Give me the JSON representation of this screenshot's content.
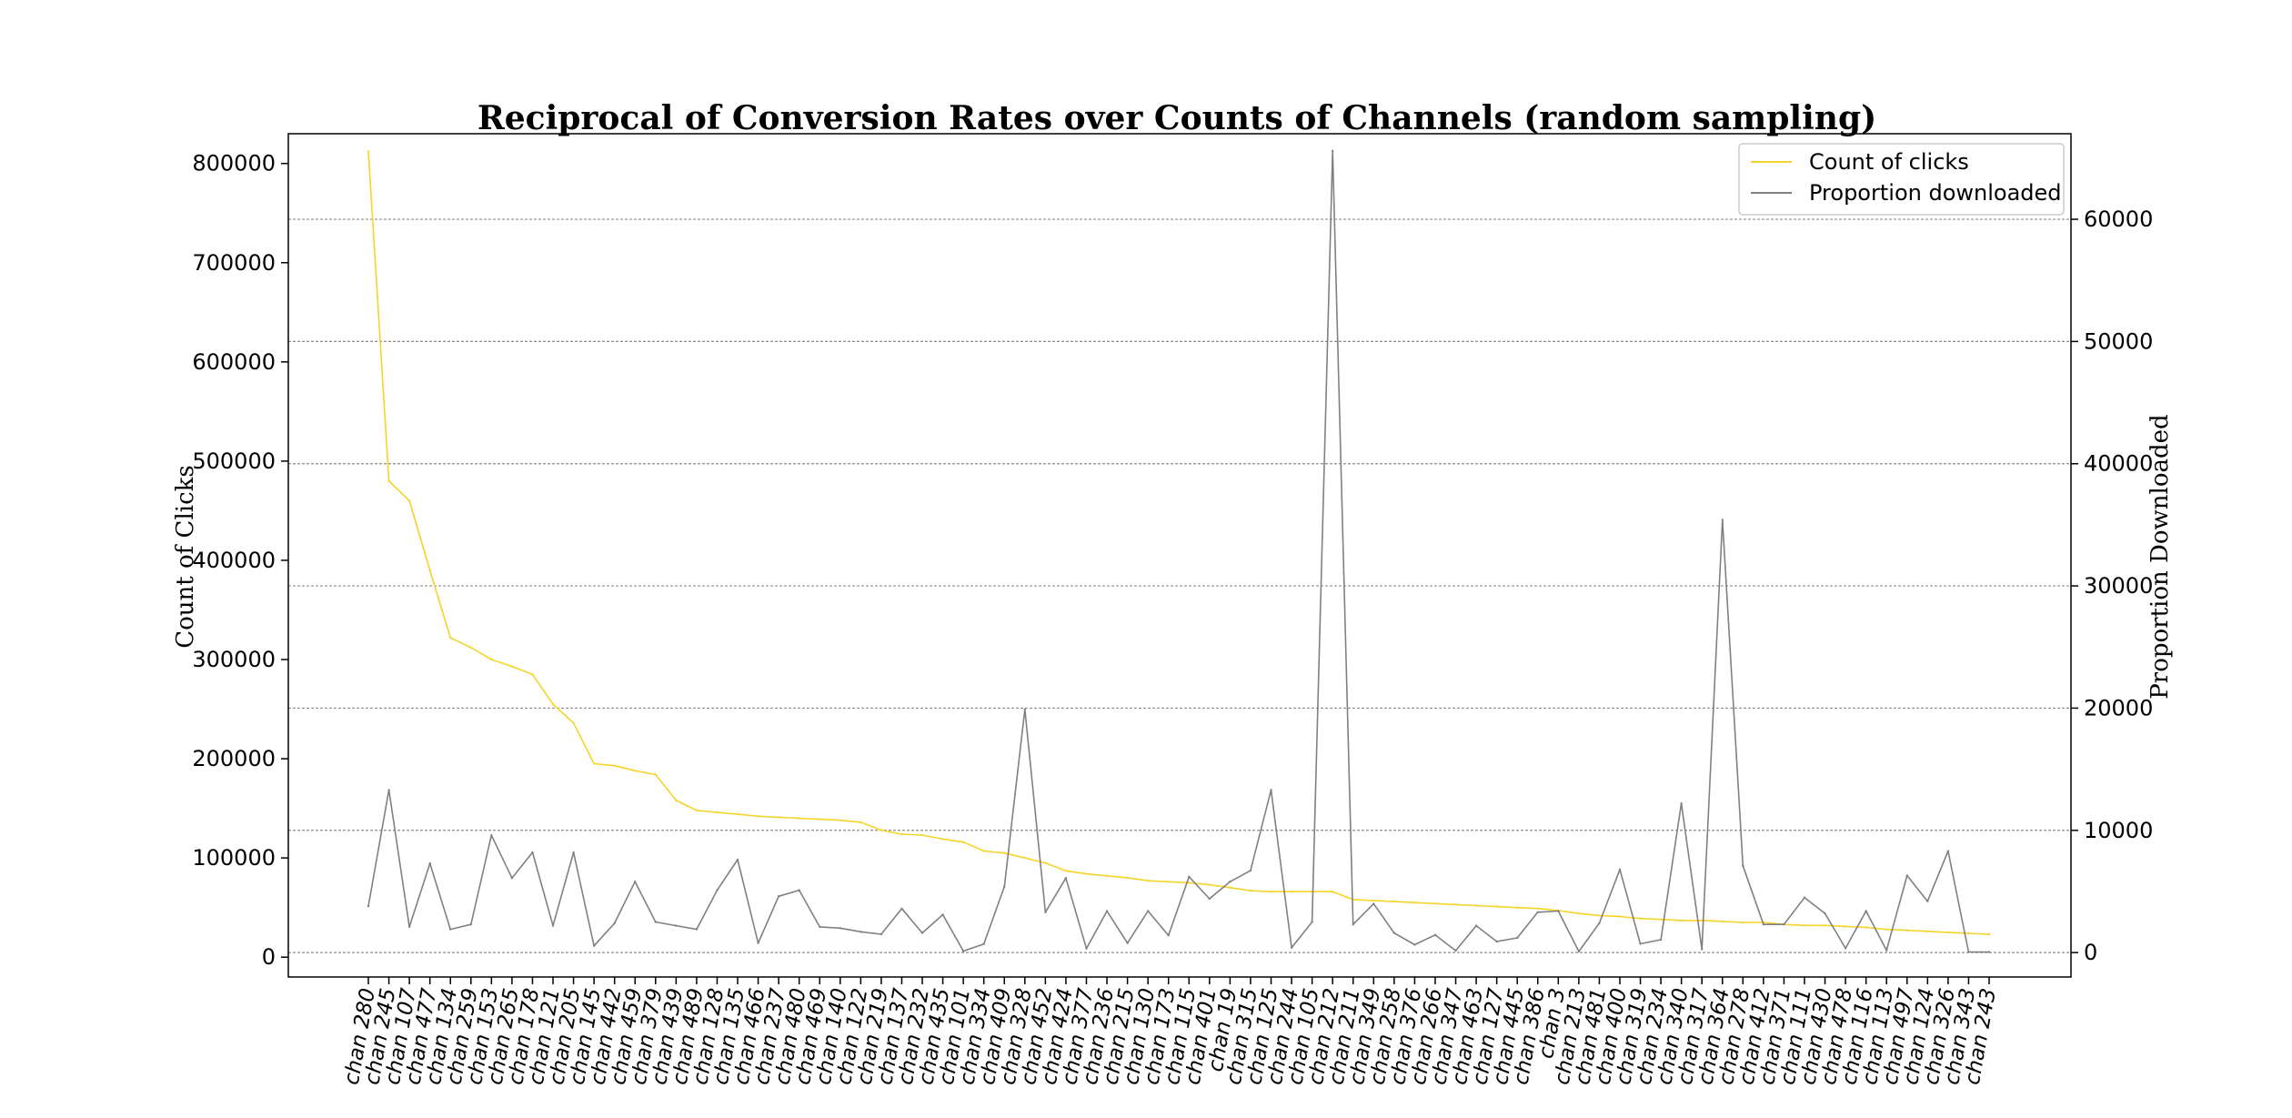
{
  "chart_data": {
    "type": "line",
    "title": "Reciprocal of Conversion Rates over Counts of Channels (random sampling)",
    "ylabel_left": "Count of Clicks",
    "ylabel_right": "Proportion Downloaded",
    "xlabel": "",
    "ylim_left": [
      -20000,
      830000
    ],
    "ylim_right": [
      -2000,
      67000
    ],
    "yticks_left": [
      0,
      100000,
      200000,
      300000,
      400000,
      500000,
      600000,
      700000,
      800000
    ],
    "yticks_right": [
      0,
      10000,
      20000,
      30000,
      40000,
      50000,
      60000
    ],
    "grid": "horizontal dashed (right axis)",
    "legend_position": "top-right",
    "categories": [
      "chan 280",
      "chan 245",
      "chan 107",
      "chan 477",
      "chan 134",
      "chan 259",
      "chan 153",
      "chan 265",
      "chan 178",
      "chan 121",
      "chan 205",
      "chan 145",
      "chan 442",
      "chan 459",
      "chan 379",
      "chan 439",
      "chan 489",
      "chan 128",
      "chan 135",
      "chan 466",
      "chan 237",
      "chan 480",
      "chan 469",
      "chan 140",
      "chan 122",
      "chan 219",
      "chan 137",
      "chan 232",
      "chan 435",
      "chan 101",
      "chan 334",
      "chan 409",
      "chan 328",
      "chan 452",
      "chan 424",
      "chan 377",
      "chan 236",
      "chan 215",
      "chan 130",
      "chan 173",
      "chan 115",
      "chan 401",
      "chan 19",
      "chan 315",
      "chan 125",
      "chan 244",
      "chan 105",
      "chan 212",
      "chan 211",
      "chan 349",
      "chan 258",
      "chan 376",
      "chan 266",
      "chan 347",
      "chan 463",
      "chan 127",
      "chan 445",
      "chan 386",
      "chan 3",
      "chan 213",
      "chan 481",
      "chan 400",
      "chan 319",
      "chan 234",
      "chan 340",
      "chan 317",
      "chan 364",
      "chan 278",
      "chan 412",
      "chan 371",
      "chan 111",
      "chan 430",
      "chan 478",
      "chan 116",
      "chan 113",
      "chan 497",
      "chan 124",
      "chan 326",
      "chan 343",
      "chan 243"
    ],
    "series": [
      {
        "name": "Count of clicks",
        "axis": "left",
        "color": "#f5d42a",
        "values": [
          812000,
          480000,
          460000,
          390000,
          322000,
          312000,
          300000,
          293000,
          285000,
          255000,
          236000,
          195000,
          193000,
          188000,
          184000,
          158000,
          148000,
          146000,
          144000,
          142000,
          141000,
          140000,
          139000,
          138000,
          136000,
          128000,
          124000,
          123000,
          119000,
          116000,
          107000,
          105000,
          100000,
          95000,
          87000,
          84000,
          82000,
          80000,
          77000,
          76000,
          75000,
          73000,
          70000,
          67000,
          66000,
          66000,
          66000,
          66000,
          58000,
          57000,
          56000,
          55000,
          54000,
          53000,
          52000,
          51000,
          50000,
          49000,
          47000,
          44000,
          42000,
          41000,
          39000,
          38000,
          37000,
          37000,
          36000,
          35000,
          35000,
          33000,
          32000,
          32000,
          31000,
          30000,
          28000,
          27000,
          26000,
          25000,
          24000,
          23000
        ]
      },
      {
        "name": "Proportion downloaded",
        "axis": "right",
        "color": "#808080",
        "values": [
          3800,
          13300,
          2100,
          7300,
          1900,
          2300,
          9600,
          6100,
          8200,
          2200,
          8200,
          550,
          2400,
          5800,
          2500,
          2200,
          1900,
          5100,
          7600,
          780,
          4600,
          5100,
          2100,
          2000,
          1700,
          1500,
          3600,
          1600,
          3100,
          120,
          700,
          5400,
          19900,
          3300,
          6100,
          330,
          3400,
          780,
          3400,
          1400,
          6200,
          4400,
          5800,
          6700,
          13300,
          400,
          2500,
          65600,
          2300,
          4000,
          1600,
          640,
          1450,
          160,
          2200,
          900,
          1200,
          3300,
          3400,
          90,
          2400,
          6800,
          720,
          1050,
          12200,
          270,
          35400,
          7100,
          2300,
          2300,
          4500,
          3200,
          350,
          3400,
          180,
          6300,
          4200,
          8300,
          50,
          50
        ]
      }
    ]
  },
  "legend": {
    "items": [
      {
        "label": "Count of clicks",
        "color": "#f5d42a"
      },
      {
        "label": "Proportion downloaded",
        "color": "#808080"
      }
    ]
  }
}
